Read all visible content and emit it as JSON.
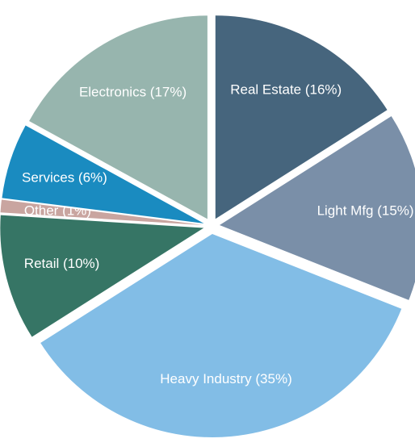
{
  "chart_data": {
    "type": "pie",
    "values": [
      16,
      15,
      35,
      10,
      1,
      6,
      17
    ],
    "value_labels": [
      "Real Estate (16%)",
      "Light Mfg (15%)",
      "Heavy Industry (35%)",
      "Retail (10%)",
      "Other (1%)",
      "Services (6%)",
      "Electronics (17%)"
    ],
    "colors": [
      "#46657d",
      "#7a8fa8",
      "#82bde6",
      "#367565",
      "#c9a5a0",
      "#1a8bc0",
      "#97b5ae"
    ]
  }
}
